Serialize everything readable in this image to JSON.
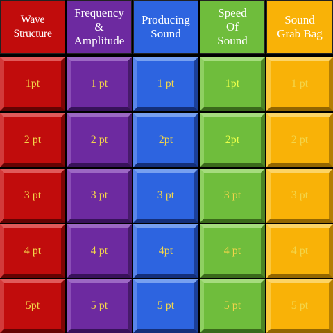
{
  "colors": {
    "header_text": "#ffffff",
    "value_text": "#f3d54a",
    "value_text_bright": "#e9ff4a"
  },
  "categories": [
    {
      "title": "Wave Structure",
      "theme": "red",
      "values": [
        "1pt",
        "2 pt",
        "3 pt",
        "4 pt",
        "5pt"
      ]
    },
    {
      "title": "Frequency\n&\nAmplitude",
      "theme": "purple",
      "values": [
        "1 pt",
        "2 pt",
        "3 pt",
        "4 pt",
        "5 pt"
      ]
    },
    {
      "title": "Producing\nSound",
      "theme": "blue",
      "values": [
        "1 pt",
        "2pt",
        "3 pt",
        "4pt",
        "5 pt"
      ]
    },
    {
      "title": "Speed\nOf\nSound",
      "theme": "green",
      "values": [
        "1pt",
        "2pt",
        "3 pt",
        "4 pt",
        "5 pt"
      ]
    },
    {
      "title": "Sound\nGrab Bag",
      "theme": "orange",
      "values": [
        "1 pt",
        "2 pt",
        "3 pt",
        "4 pt",
        "5 pt"
      ]
    }
  ]
}
